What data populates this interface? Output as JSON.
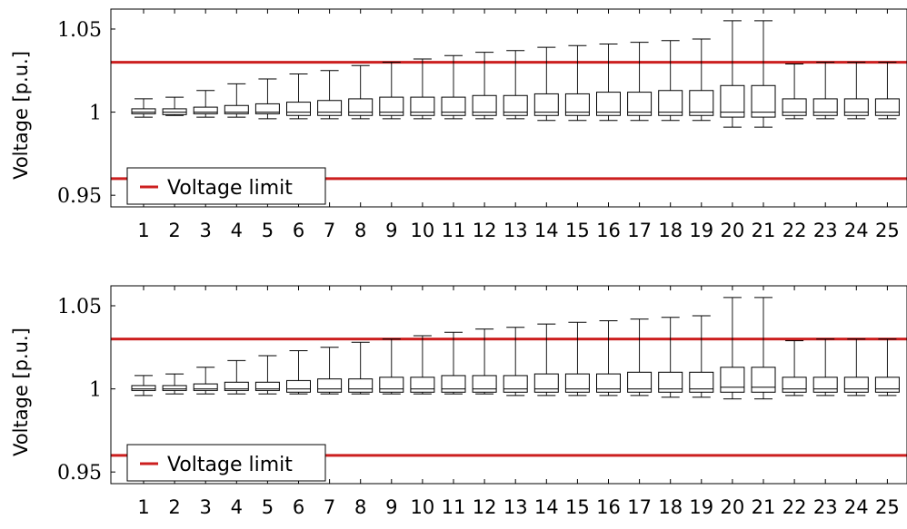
{
  "chart_data": [
    {
      "type": "boxplot",
      "ylabel": "Voltage [p.u.]",
      "xlabel": "",
      "ylim": [
        0.943,
        1.062
      ],
      "yticks": [
        0.95,
        1,
        1.05
      ],
      "ytick_labels": [
        "0.95",
        "1",
        "1.05"
      ],
      "categories": [
        "1",
        "2",
        "3",
        "4",
        "5",
        "6",
        "7",
        "8",
        "9",
        "10",
        "11",
        "12",
        "13",
        "14",
        "15",
        "16",
        "17",
        "18",
        "19",
        "20",
        "21",
        "22",
        "23",
        "24",
        "25"
      ],
      "limit_color": "#cc1f1f",
      "box_color": "#000000",
      "limits": [
        1.03,
        0.96
      ],
      "legend": {
        "label": "Voltage limit",
        "placement": "lower-left"
      },
      "boxes": [
        {
          "whislo": 0.997,
          "q1": 0.999,
          "med": 1.0,
          "q3": 1.002,
          "whishi": 1.008
        },
        {
          "whislo": 0.998,
          "q1": 0.9985,
          "med": 1.0,
          "q3": 1.002,
          "whishi": 1.009
        },
        {
          "whislo": 0.997,
          "q1": 0.999,
          "med": 1.0,
          "q3": 1.003,
          "whishi": 1.013
        },
        {
          "whislo": 0.997,
          "q1": 0.999,
          "med": 1.0,
          "q3": 1.004,
          "whishi": 1.017
        },
        {
          "whislo": 0.996,
          "q1": 0.999,
          "med": 1.0,
          "q3": 1.005,
          "whishi": 1.02
        },
        {
          "whislo": 0.996,
          "q1": 0.998,
          "med": 1.0,
          "q3": 1.006,
          "whishi": 1.023
        },
        {
          "whislo": 0.996,
          "q1": 0.998,
          "med": 1.0,
          "q3": 1.007,
          "whishi": 1.025
        },
        {
          "whislo": 0.996,
          "q1": 0.998,
          "med": 1.0,
          "q3": 1.008,
          "whishi": 1.028
        },
        {
          "whislo": 0.996,
          "q1": 0.998,
          "med": 1.0,
          "q3": 1.009,
          "whishi": 1.03
        },
        {
          "whislo": 0.996,
          "q1": 0.998,
          "med": 1.0,
          "q3": 1.009,
          "whishi": 1.032
        },
        {
          "whislo": 0.996,
          "q1": 0.998,
          "med": 1.0,
          "q3": 1.009,
          "whishi": 1.034
        },
        {
          "whislo": 0.996,
          "q1": 0.998,
          "med": 1.0,
          "q3": 1.01,
          "whishi": 1.036
        },
        {
          "whislo": 0.996,
          "q1": 0.998,
          "med": 1.0,
          "q3": 1.01,
          "whishi": 1.037
        },
        {
          "whislo": 0.995,
          "q1": 0.998,
          "med": 1.0,
          "q3": 1.011,
          "whishi": 1.039
        },
        {
          "whislo": 0.995,
          "q1": 0.998,
          "med": 1.0,
          "q3": 1.011,
          "whishi": 1.04
        },
        {
          "whislo": 0.995,
          "q1": 0.998,
          "med": 1.0,
          "q3": 1.012,
          "whishi": 1.041
        },
        {
          "whislo": 0.995,
          "q1": 0.998,
          "med": 1.0,
          "q3": 1.012,
          "whishi": 1.042
        },
        {
          "whislo": 0.995,
          "q1": 0.998,
          "med": 1.0,
          "q3": 1.013,
          "whishi": 1.043
        },
        {
          "whislo": 0.995,
          "q1": 0.998,
          "med": 1.0,
          "q3": 1.013,
          "whishi": 1.044
        },
        {
          "whislo": 0.991,
          "q1": 0.997,
          "med": 1.0,
          "q3": 1.016,
          "whishi": 1.055
        },
        {
          "whislo": 0.991,
          "q1": 0.997,
          "med": 1.0,
          "q3": 1.016,
          "whishi": 1.055
        },
        {
          "whislo": 0.996,
          "q1": 0.998,
          "med": 1.0,
          "q3": 1.008,
          "whishi": 1.029
        },
        {
          "whislo": 0.996,
          "q1": 0.998,
          "med": 1.0,
          "q3": 1.008,
          "whishi": 1.03
        },
        {
          "whislo": 0.996,
          "q1": 0.998,
          "med": 1.0,
          "q3": 1.008,
          "whishi": 1.03
        },
        {
          "whislo": 0.996,
          "q1": 0.998,
          "med": 1.0,
          "q3": 1.008,
          "whishi": 1.03
        }
      ]
    },
    {
      "type": "boxplot",
      "ylabel": "Voltage [p.u.]",
      "xlabel": "",
      "ylim": [
        0.943,
        1.062
      ],
      "yticks": [
        0.95,
        1,
        1.05
      ],
      "ytick_labels": [
        "0.95",
        "1",
        "1.05"
      ],
      "categories": [
        "1",
        "2",
        "3",
        "4",
        "5",
        "6",
        "7",
        "8",
        "9",
        "10",
        "11",
        "12",
        "13",
        "14",
        "15",
        "16",
        "17",
        "18",
        "19",
        "20",
        "21",
        "22",
        "23",
        "24",
        "25"
      ],
      "limit_color": "#cc1f1f",
      "box_color": "#000000",
      "limits": [
        1.03,
        0.96
      ],
      "legend": {
        "label": "Voltage limit",
        "placement": "lower-left"
      },
      "boxes": [
        {
          "whislo": 0.996,
          "q1": 0.999,
          "med": 1.0,
          "q3": 1.002,
          "whishi": 1.008
        },
        {
          "whislo": 0.997,
          "q1": 0.999,
          "med": 1.0,
          "q3": 1.002,
          "whishi": 1.009
        },
        {
          "whislo": 0.997,
          "q1": 0.999,
          "med": 1.0,
          "q3": 1.003,
          "whishi": 1.013
        },
        {
          "whislo": 0.997,
          "q1": 0.999,
          "med": 1.0,
          "q3": 1.004,
          "whishi": 1.017
        },
        {
          "whislo": 0.997,
          "q1": 0.999,
          "med": 1.0,
          "q3": 1.004,
          "whishi": 1.02
        },
        {
          "whislo": 0.997,
          "q1": 0.998,
          "med": 1.0,
          "q3": 1.005,
          "whishi": 1.023
        },
        {
          "whislo": 0.997,
          "q1": 0.998,
          "med": 1.0,
          "q3": 1.006,
          "whishi": 1.025
        },
        {
          "whislo": 0.997,
          "q1": 0.998,
          "med": 1.0,
          "q3": 1.006,
          "whishi": 1.028
        },
        {
          "whislo": 0.997,
          "q1": 0.998,
          "med": 1.0,
          "q3": 1.007,
          "whishi": 1.03
        },
        {
          "whislo": 0.997,
          "q1": 0.998,
          "med": 1.0,
          "q3": 1.007,
          "whishi": 1.032
        },
        {
          "whislo": 0.997,
          "q1": 0.998,
          "med": 1.0,
          "q3": 1.008,
          "whishi": 1.034
        },
        {
          "whislo": 0.997,
          "q1": 0.998,
          "med": 1.0,
          "q3": 1.008,
          "whishi": 1.036
        },
        {
          "whislo": 0.996,
          "q1": 0.998,
          "med": 1.0,
          "q3": 1.008,
          "whishi": 1.037
        },
        {
          "whislo": 0.996,
          "q1": 0.998,
          "med": 1.0,
          "q3": 1.009,
          "whishi": 1.039
        },
        {
          "whislo": 0.996,
          "q1": 0.998,
          "med": 1.0,
          "q3": 1.009,
          "whishi": 1.04
        },
        {
          "whislo": 0.996,
          "q1": 0.998,
          "med": 1.0,
          "q3": 1.009,
          "whishi": 1.041
        },
        {
          "whislo": 0.996,
          "q1": 0.998,
          "med": 1.0,
          "q3": 1.01,
          "whishi": 1.042
        },
        {
          "whislo": 0.995,
          "q1": 0.998,
          "med": 1.0,
          "q3": 1.01,
          "whishi": 1.043
        },
        {
          "whislo": 0.995,
          "q1": 0.998,
          "med": 1.0,
          "q3": 1.01,
          "whishi": 1.044
        },
        {
          "whislo": 0.994,
          "q1": 0.998,
          "med": 1.001,
          "q3": 1.013,
          "whishi": 1.055
        },
        {
          "whislo": 0.994,
          "q1": 0.998,
          "med": 1.001,
          "q3": 1.013,
          "whishi": 1.055
        },
        {
          "whislo": 0.996,
          "q1": 0.998,
          "med": 1.0,
          "q3": 1.007,
          "whishi": 1.029
        },
        {
          "whislo": 0.996,
          "q1": 0.998,
          "med": 1.0,
          "q3": 1.007,
          "whishi": 1.03
        },
        {
          "whislo": 0.996,
          "q1": 0.998,
          "med": 1.0,
          "q3": 1.007,
          "whishi": 1.03
        },
        {
          "whislo": 0.996,
          "q1": 0.998,
          "med": 1.0,
          "q3": 1.007,
          "whishi": 1.03
        }
      ]
    }
  ]
}
